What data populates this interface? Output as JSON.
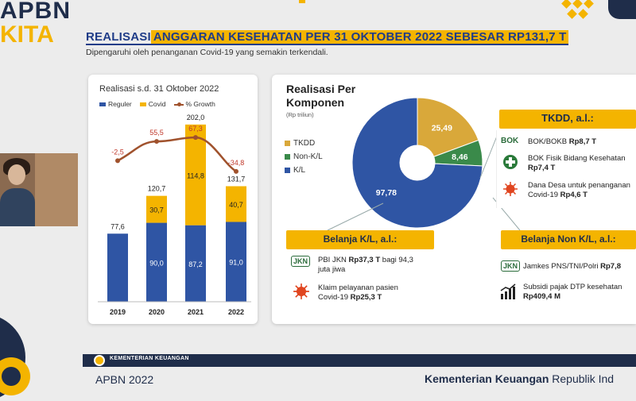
{
  "branding": {
    "apbn": "APBN",
    "kita": "KITA"
  },
  "slide": {
    "title_part1": "REALISASI ",
    "title_part2": "ANGGARAN KESEHATAN PER 31 OKTOBER 2022 SEBESAR RP131,7 T",
    "subtitle": "Dipengaruhi oleh penanganan Covid-19 yang semakin terkendali."
  },
  "chart_data": [
    {
      "type": "bar",
      "stacked": true,
      "title": "Realisasi s.d. 31 Oktober 2022",
      "categories": [
        "2019",
        "2020",
        "2021",
        "2022"
      ],
      "series": [
        {
          "name": "Reguler",
          "values": [
            77.6,
            90.0,
            87.2,
            91.0
          ],
          "labels": [
            "77,6",
            "90,0",
            "87,2",
            "91,0"
          ],
          "color": "#2f55a4"
        },
        {
          "name": "Covid",
          "values": [
            0,
            30.7,
            114.8,
            40.7
          ],
          "labels": [
            "",
            "30,7",
            "114,8",
            "40,7"
          ],
          "color": "#f4b400"
        }
      ],
      "totals": [
        "",
        "120,7",
        "202,0",
        "131,7"
      ],
      "line_series": {
        "name": "% Growth",
        "values": [
          -2.5,
          55.5,
          67.3,
          -34.8
        ],
        "labels": [
          "-2,5",
          "55,5",
          "67,3",
          "-34,8"
        ],
        "color": "#a0522d"
      },
      "ylim": [
        0,
        210
      ]
    },
    {
      "type": "pie",
      "title": "Realisasi Per Komponen",
      "unit": "(Rp triliun)",
      "slices": [
        {
          "name": "TKDD",
          "value": 25.49,
          "label": "25,49",
          "color": "#d9a83a"
        },
        {
          "name": "Non-K/L",
          "value": 8.46,
          "label": "8,46",
          "color": "#3a8a4a"
        },
        {
          "name": "K/L",
          "value": 97.78,
          "label": "97,78",
          "color": "#2f55a4"
        }
      ]
    }
  ],
  "tkdd": {
    "header": "TKDD, a.l.:",
    "items": [
      {
        "icon": "bok-logo-icon",
        "icon_text": "BOK",
        "text": "BOK/BOKB ",
        "bold": "Rp8,7 T"
      },
      {
        "icon": "medical-cross-icon",
        "line1": "BOK Fisik Bidang Kesehatan",
        "bold": "Rp7,4 T"
      },
      {
        "icon": "virus-icon",
        "line1": "Dana Desa untuk penanganan",
        "line2": "Covid-19 ",
        "bold": "Rp4,6 T"
      }
    ]
  },
  "belanja_kl": {
    "header": "Belanja K/L, a.l.:",
    "items": [
      {
        "icon": "jkn-logo-icon",
        "icon_text": "JKN",
        "pre": "PBI JKN ",
        "bold": "Rp37,3 T",
        "post": " bagi 94,3",
        "line2": "juta jiwa"
      },
      {
        "icon": "virus-icon",
        "line1": "Klaim pelayanan pasien",
        "line2": "Covid-19 ",
        "bold": "Rp25,3 T"
      }
    ]
  },
  "belanja_non_kl": {
    "header": "Belanja Non K/L, a.l.:",
    "items": [
      {
        "icon": "jkn-logo-icon",
        "icon_text": "JKN",
        "text": "Jamkes PNS/TNI/Polri ",
        "bold": "Rp7,8"
      },
      {
        "icon": "bar-chart-icon",
        "line1": "Subsidi pajak DTP kesehatan",
        "bold": "Rp409,4 M"
      }
    ]
  },
  "footer": {
    "ministry_small": "KEMENTERIAN KEUANGAN",
    "apbn_year": "APBN 2022",
    "kemenkeu_bold": "Kementerian Keuangan",
    "kemenkeu_rest": " Republik Ind"
  },
  "colors": {
    "navy": "#1f2d4a",
    "gold": "#f4b400",
    "blue": "#2f55a4",
    "brown": "#a0522d"
  }
}
